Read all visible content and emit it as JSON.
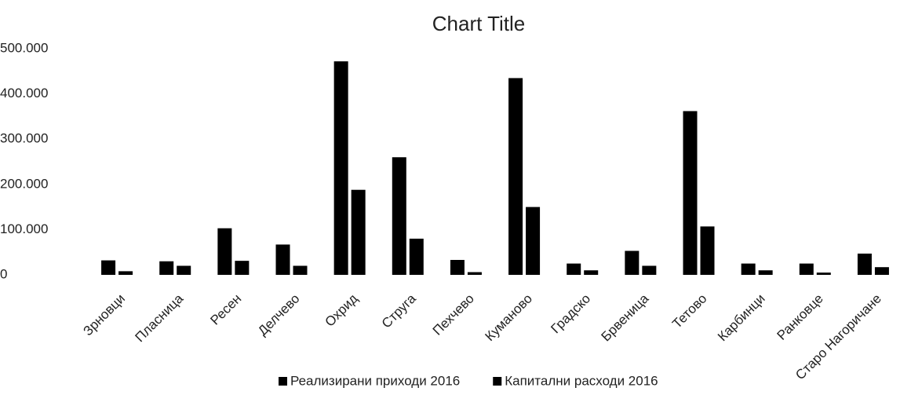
{
  "chart_data": {
    "type": "bar",
    "title": "Chart Title",
    "categories": [
      "Зрновци",
      "Пласница",
      "Ресен",
      "Делчево",
      "Охрид",
      "Струга",
      "Пехчево",
      "Куманово",
      "Градско",
      "Брвеница",
      "Тетово",
      "Карбинци",
      "Ранковце",
      "Старо Нагоричане"
    ],
    "series": [
      {
        "name": "Реализирани приходи 2016",
        "color": "#000000",
        "values": [
          32000,
          30000,
          103000,
          67000,
          472000,
          260000,
          33000,
          435000,
          25000,
          53000,
          362000,
          25000,
          25000,
          47000
        ]
      },
      {
        "name": "Капитални расходи 2016",
        "color": "#000000",
        "values": [
          8000,
          20000,
          31000,
          20000,
          188000,
          80000,
          6000,
          150000,
          10000,
          20000,
          107000,
          10000,
          5000,
          17000
        ]
      }
    ],
    "ylim": [
      0,
      500000
    ],
    "yticks": [
      0,
      {
        "value": 100000,
        "label": "100.000"
      },
      {
        "value": 200000,
        "label": "200.000"
      },
      {
        "value": 300000,
        "label": "300.000"
      },
      {
        "value": 400000,
        "label": "400.000"
      },
      {
        "value": 500000,
        "label": "500.000"
      }
    ],
    "grid": false,
    "legend": "bottom"
  }
}
